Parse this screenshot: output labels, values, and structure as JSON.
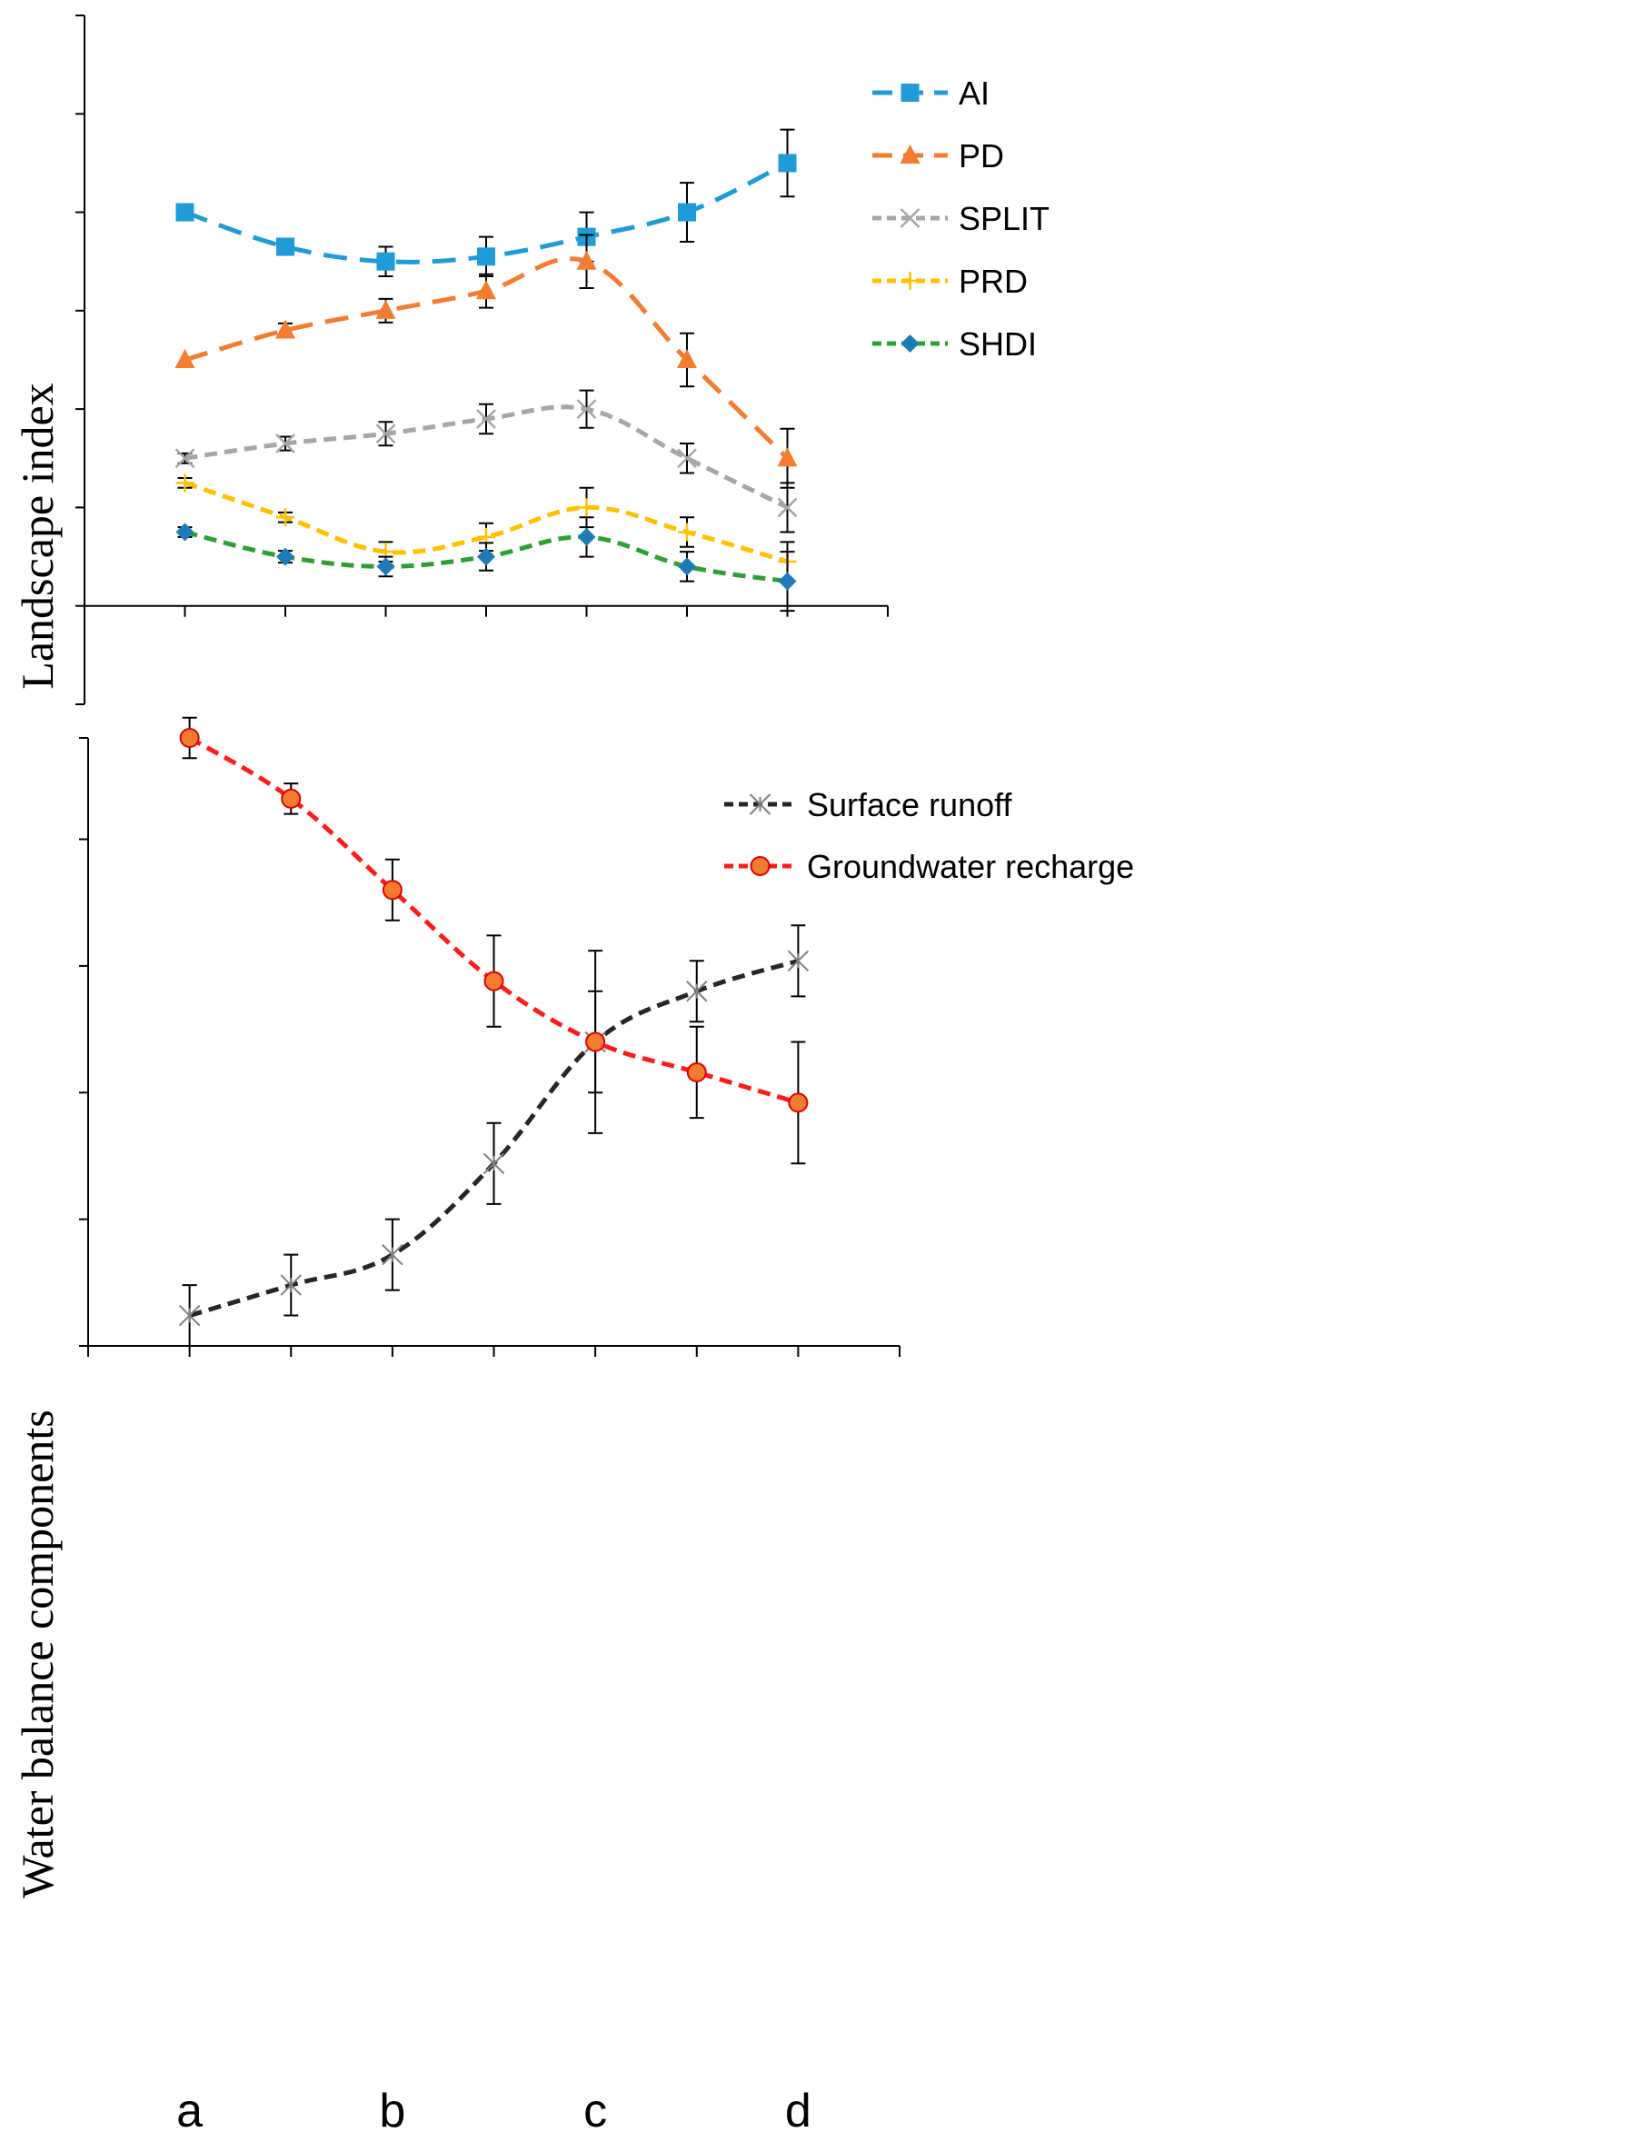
{
  "chart_data": [
    {
      "type": "line",
      "title": "",
      "xlabel": "",
      "ylabel": "Landscape index",
      "x": [
        1,
        2,
        3,
        4,
        5,
        6,
        7
      ],
      "xlim": [
        0,
        8
      ],
      "ylim": [
        -1,
        6
      ],
      "y_tick_labels_shown": false,
      "grid": false,
      "legend_position": "top-right",
      "series": [
        {
          "name": "AI",
          "color": "#1f9bd7",
          "marker": "square",
          "dash": "long",
          "values": [
            4.0,
            3.65,
            3.5,
            3.55,
            3.75,
            4.0,
            4.5
          ],
          "errors": [
            0.0,
            0.08,
            0.15,
            0.2,
            0.25,
            0.3,
            0.34
          ]
        },
        {
          "name": "PD",
          "color": "#f47c30",
          "marker": "triangle",
          "dash": "long",
          "values": [
            2.5,
            2.8,
            3.0,
            3.2,
            3.5,
            2.5,
            1.5
          ],
          "errors": [
            0.0,
            0.07,
            0.12,
            0.17,
            0.27,
            0.27,
            0.3
          ]
        },
        {
          "name": "SPLIT",
          "color": "#a6a6a6",
          "marker": "x",
          "dash": "medium",
          "values": [
            1.5,
            1.65,
            1.75,
            1.9,
            2.0,
            1.5,
            1.0
          ],
          "errors": [
            0.05,
            0.07,
            0.12,
            0.15,
            0.19,
            0.15,
            0.25
          ]
        },
        {
          "name": "PRD",
          "color": "#ffc000",
          "marker": "plus",
          "dash": "medium",
          "values": [
            1.25,
            0.9,
            0.55,
            0.7,
            1.0,
            0.75,
            0.45
          ],
          "errors": [
            0.05,
            0.05,
            0.1,
            0.14,
            0.2,
            0.15,
            0.2
          ]
        },
        {
          "name": "SHDI",
          "color": "#2ca033",
          "marker_color": "#1f7ab8",
          "marker": "diamond",
          "dash": "medium",
          "values": [
            0.75,
            0.5,
            0.4,
            0.5,
            0.7,
            0.4,
            0.25
          ],
          "errors": [
            0.05,
            0.06,
            0.1,
            0.14,
            0.2,
            0.15,
            0.3
          ]
        }
      ]
    },
    {
      "type": "line",
      "title": "",
      "xlabel": "",
      "ylabel": "Water balance components",
      "x": [
        1,
        2,
        3,
        4,
        5,
        6,
        7
      ],
      "categories": [
        "a",
        "b",
        "c",
        "d"
      ],
      "category_positions": [
        1,
        3,
        5,
        7
      ],
      "xlim": [
        0,
        8
      ],
      "ylim": [
        0,
        6
      ],
      "y_tick_labels_shown": false,
      "grid": false,
      "legend_position": "top-right",
      "series": [
        {
          "name": "Surface runoff",
          "color": "#262626",
          "marker": "asterisk",
          "dash": "medium",
          "values": [
            0.3,
            0.6,
            0.9,
            1.8,
            3.0,
            3.5,
            3.8
          ],
          "errors": [
            0.3,
            0.3,
            0.35,
            0.4,
            0.5,
            0.3,
            0.35
          ]
        },
        {
          "name": "Groundwater recharge",
          "color": "#ff1a1a",
          "marker_color": "#f47c30",
          "marker": "circle",
          "dash": "medium",
          "values": [
            6.0,
            5.4,
            4.5,
            3.6,
            3.0,
            2.7,
            2.4
          ],
          "errors": [
            0.2,
            0.15,
            0.3,
            0.45,
            0.9,
            0.45,
            0.6
          ]
        }
      ]
    }
  ]
}
